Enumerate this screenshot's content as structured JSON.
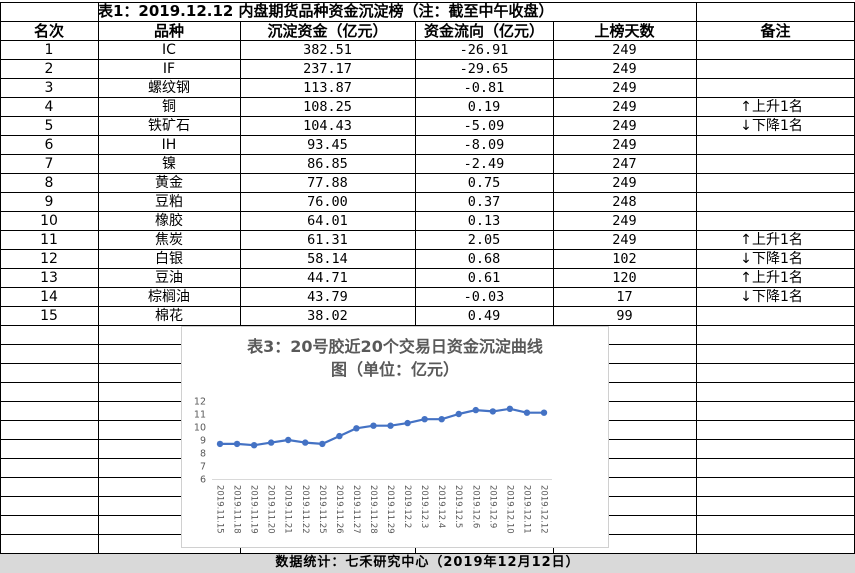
{
  "sheet": {
    "title": "表1：2019.12.12 内盘期货品种资金沉淀榜（注：截至中午收盘）",
    "headers": {
      "rank": "名次",
      "variety": "品种",
      "fund": "沉淀资金（亿元）",
      "flow": "资金流向（亿元）",
      "days": "上榜天数",
      "note": "备注"
    },
    "rows": [
      {
        "rank": "1",
        "variety": "IC",
        "fund": "382.51",
        "flow": "-26.91",
        "days": "249",
        "note": ""
      },
      {
        "rank": "2",
        "variety": "IF",
        "fund": "237.17",
        "flow": "-29.65",
        "days": "249",
        "note": ""
      },
      {
        "rank": "3",
        "variety": "螺纹钢",
        "fund": "113.87",
        "flow": "-0.81",
        "days": "249",
        "note": ""
      },
      {
        "rank": "4",
        "variety": "铜",
        "fund": "108.25",
        "flow": "0.19",
        "days": "249",
        "note": "上升1名",
        "arrow": "↑"
      },
      {
        "rank": "5",
        "variety": "铁矿石",
        "fund": "104.43",
        "flow": "-5.09",
        "days": "249",
        "note": "下降1名",
        "arrow": "↓"
      },
      {
        "rank": "6",
        "variety": "IH",
        "fund": "93.45",
        "flow": "-8.09",
        "days": "249",
        "note": ""
      },
      {
        "rank": "7",
        "variety": "镍",
        "fund": "86.85",
        "flow": "-2.49",
        "days": "247",
        "note": ""
      },
      {
        "rank": "8",
        "variety": "黄金",
        "fund": "77.88",
        "flow": "0.75",
        "days": "249",
        "note": ""
      },
      {
        "rank": "9",
        "variety": "豆粕",
        "fund": "76.00",
        "flow": "0.37",
        "days": "248",
        "note": ""
      },
      {
        "rank": "10",
        "variety": "橡胶",
        "fund": "64.01",
        "flow": "0.13",
        "days": "249",
        "note": ""
      },
      {
        "rank": "11",
        "variety": "焦炭",
        "fund": "61.31",
        "flow": "2.05",
        "days": "249",
        "note": "上升1名",
        "arrow": "↑"
      },
      {
        "rank": "12",
        "variety": "白银",
        "fund": "58.14",
        "flow": "0.68",
        "days": "102",
        "note": "下降1名",
        "arrow": "↓"
      },
      {
        "rank": "13",
        "variety": "豆油",
        "fund": "44.71",
        "flow": "0.61",
        "days": "120",
        "note": "上升1名",
        "arrow": "↑"
      },
      {
        "rank": "14",
        "variety": "棕榈油",
        "fund": "43.79",
        "flow": "-0.03",
        "days": "17",
        "note": "下降1名",
        "arrow": "↓"
      },
      {
        "rank": "15",
        "variety": "棉花",
        "fund": "38.02",
        "flow": "0.49",
        "days": "99",
        "note": ""
      }
    ],
    "footer": "数据统计：七禾研究中心（2019年12月12日）"
  },
  "chart_data": {
    "type": "line",
    "title_line1": "表3：20号胶近20个交易日资金沉淀曲线",
    "title_line2": "图（单位：亿元）",
    "ylim": [
      6,
      12
    ],
    "yticks": [
      6,
      7,
      8,
      9,
      10,
      11,
      12
    ],
    "line_color": "#4472c4",
    "categories": [
      "2019.11.15",
      "2019.11.18",
      "2019.11.19",
      "2019.11.20",
      "2019.11.21",
      "2019.11.22",
      "2019.11.25",
      "2019.11.26",
      "2019.11.27",
      "2019.11.28",
      "2019.11.29",
      "2019.12.2",
      "2019.12.3",
      "2019.12.4",
      "2019.12.5",
      "2019.12.6",
      "2019.12.9",
      "2019.12.10",
      "2019.12.11",
      "2019.12.12"
    ],
    "series": [
      {
        "values": [
          8.7,
          8.7,
          8.6,
          8.8,
          9.0,
          8.8,
          8.7,
          9.3,
          9.9,
          10.1,
          10.1,
          10.3,
          10.6,
          10.6,
          11.0,
          11.3,
          11.2,
          11.4,
          11.1,
          11.1
        ]
      }
    ]
  }
}
